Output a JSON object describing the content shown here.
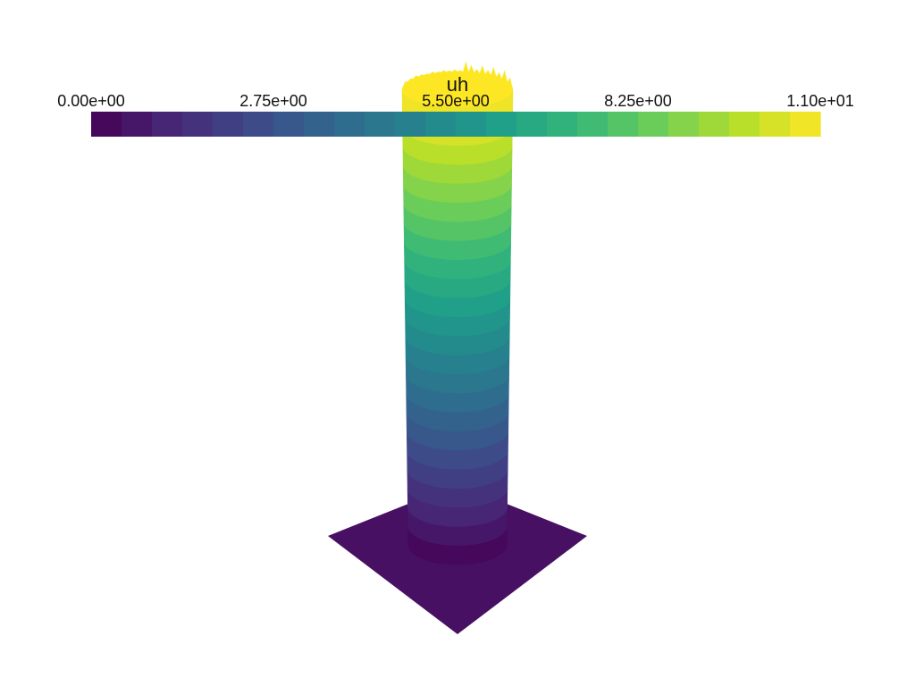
{
  "scalar_bar": {
    "title": "uh",
    "min": 0,
    "max": 11,
    "n_colors": 24,
    "tick_values": [
      0,
      2.75,
      5.5,
      8.25,
      11
    ],
    "tick_labels": [
      "0.00e+00",
      "2.75e+00",
      "5.50e+00",
      "8.25e+00",
      "1.10e+01"
    ]
  },
  "colormap": {
    "name": "viridis",
    "stops": [
      "#440154",
      "#482878",
      "#3e4989",
      "#31688e",
      "#26828e",
      "#1f9e89",
      "#35b779",
      "#6ece58",
      "#b5de2b",
      "#fde725"
    ]
  },
  "scene": {
    "background": "#ffffff",
    "base_plate": {
      "value": 0,
      "color": "#471063"
    },
    "column": {
      "value_bottom": 0,
      "value_top": 11,
      "n_bands": 24
    }
  }
}
